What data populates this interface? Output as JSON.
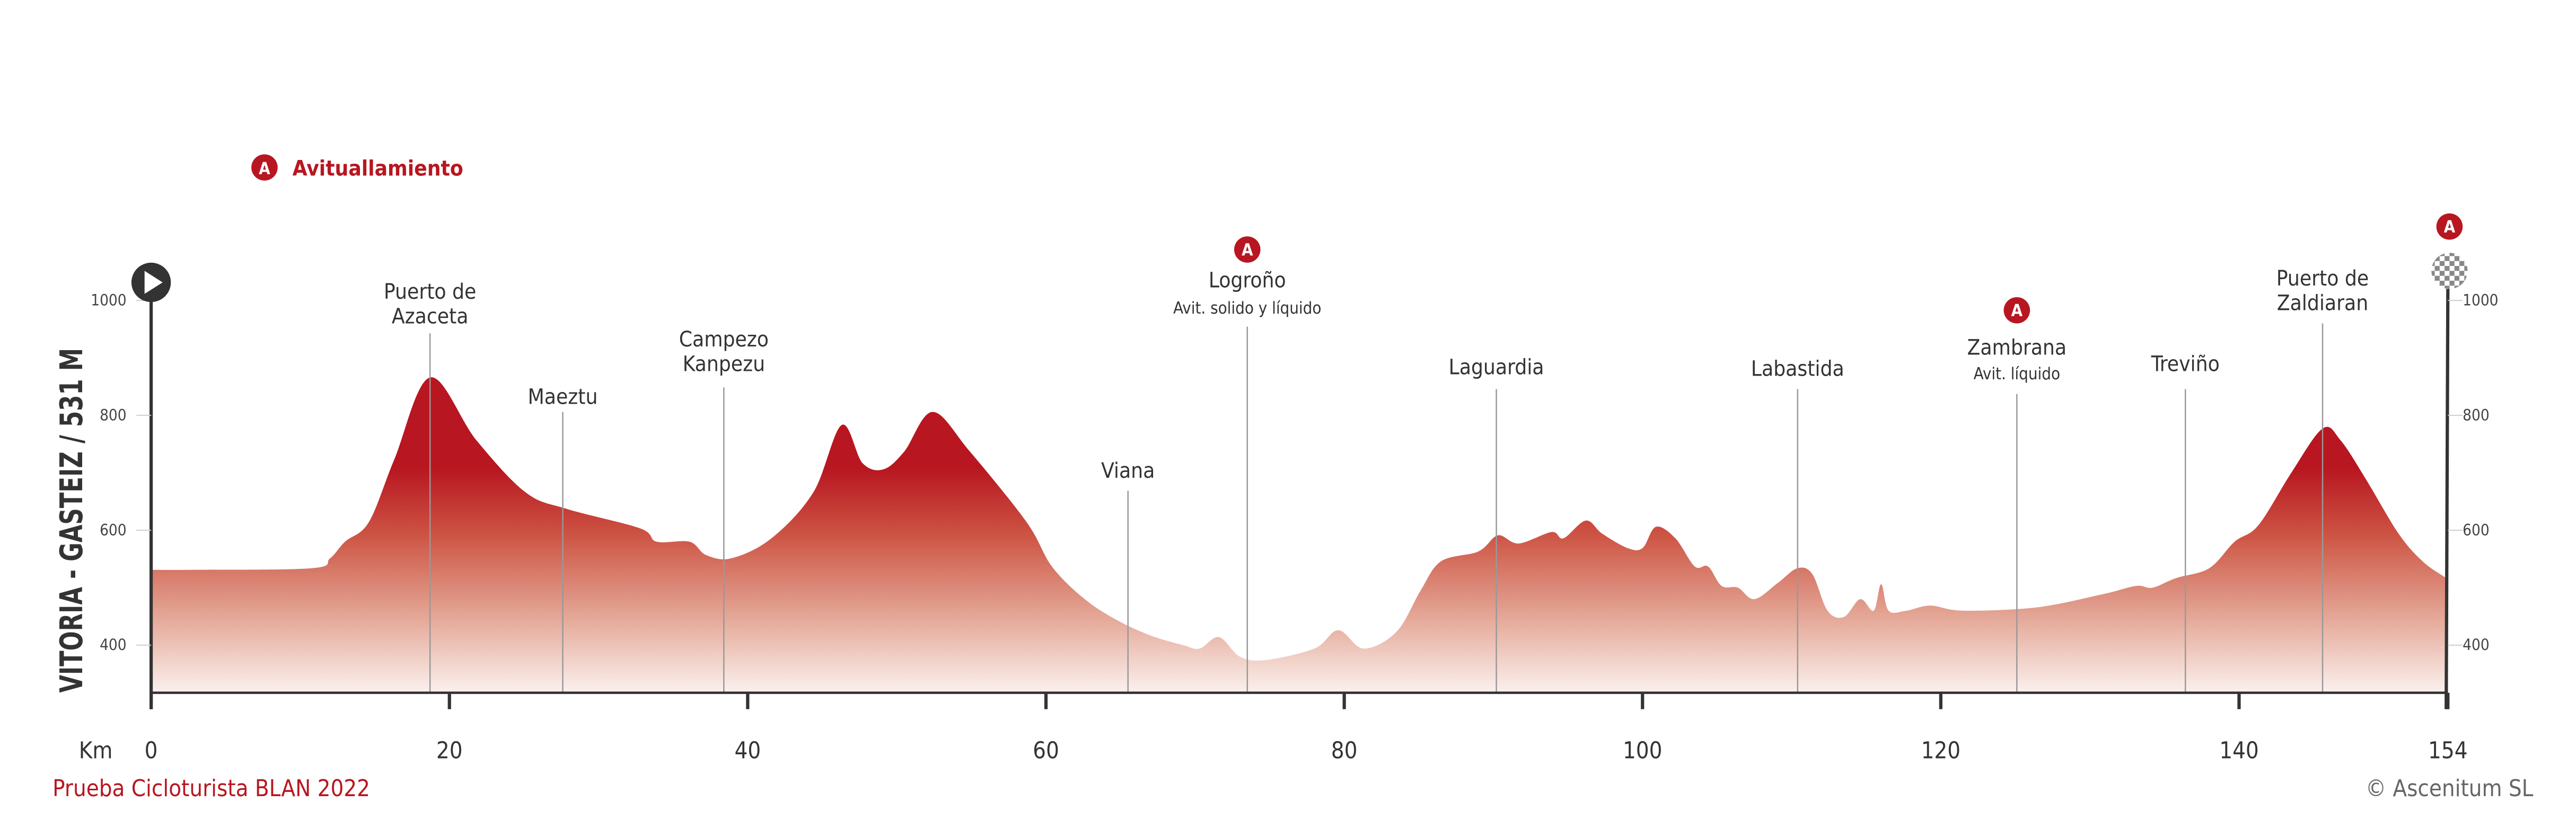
{
  "legend": {
    "marker_letter": "A",
    "label": "Avituallamiento"
  },
  "footer": {
    "event": "Prueba Cicloturista BLAN 2022",
    "copyright": "© Ascenitum SL"
  },
  "colors": {
    "accent": "#b81620",
    "axis": "#333333",
    "fill_top": "#b81620",
    "fill_bottom": "#fbf1ee"
  },
  "chart_data": {
    "type": "area",
    "title": "VITORIA - GASTEIZ / 531 M",
    "xlabel": "Km",
    "ylabel": "",
    "xlim": [
      0,
      154
    ],
    "ylim": [
      317,
      1000
    ],
    "x_ticks": [
      0,
      20,
      40,
      60,
      80,
      100,
      120,
      140,
      154
    ],
    "y_ticks": [
      400,
      600,
      800,
      1000
    ],
    "grid": false,
    "x": [
      0,
      3,
      10.8,
      12,
      13,
      14.6,
      16.3,
      18.7,
      21.8,
      25.1,
      27.9,
      32.8,
      33.9,
      36.1,
      37.2,
      38.9,
      41.6,
      44.4,
      46.3,
      47.7,
      49.1,
      50.5,
      52.4,
      54.9,
      58.7,
      60.4,
      62.6,
      64.8,
      67,
      69.2,
      70.3,
      71.6,
      73,
      74.7,
      78,
      79.6,
      81.3,
      83.5,
      85.1,
      86.5,
      89,
      90.3,
      91.7,
      93.9,
      94.7,
      96.2,
      97.3,
      99,
      100,
      100.9,
      102.2,
      103.5,
      104.4,
      105.3,
      106.4,
      107.5,
      109.1,
      110.4,
      111.4,
      112.4,
      113.5,
      114.6,
      115.5,
      116,
      116.5,
      117.7,
      119.3,
      121.5,
      126.5,
      130.9,
      133.1,
      134.2,
      135.8,
      138,
      139.7,
      141.3,
      143.5,
      145.6,
      146.8,
      148.5,
      150.7,
      152.3,
      153.7,
      154
    ],
    "elevation": [
      531,
      531,
      534,
      551,
      580,
      614,
      723,
      866,
      757,
      666,
      637,
      603,
      580,
      580,
      557,
      551,
      586,
      666,
      783,
      717,
      706,
      737,
      806,
      737,
      614,
      537,
      480,
      443,
      417,
      400,
      394,
      414,
      380,
      374,
      394,
      426,
      394,
      423,
      494,
      546,
      563,
      591,
      577,
      597,
      586,
      617,
      594,
      569,
      569,
      606,
      586,
      537,
      537,
      503,
      500,
      480,
      509,
      534,
      523,
      460,
      449,
      480,
      460,
      506,
      460,
      460,
      469,
      460,
      466,
      489,
      503,
      500,
      517,
      534,
      580,
      609,
      700,
      777,
      757,
      689,
      594,
      546,
      520,
      515
    ],
    "landmarks": [
      {
        "km": 18.7,
        "name": [
          "Puerto de",
          "Azaceta"
        ],
        "note": "",
        "feed": false
      },
      {
        "km": 27.6,
        "name": [
          "Maeztu"
        ],
        "note": "",
        "feed": false
      },
      {
        "km": 38.4,
        "name": [
          "Campezo",
          "Kanpezu"
        ],
        "note": "",
        "feed": false
      },
      {
        "km": 65.5,
        "name": [
          "Viana"
        ],
        "note": "",
        "feed": false
      },
      {
        "km": 73.5,
        "name": [
          "Logroño"
        ],
        "note": "Avit. solido y líquido",
        "feed": true
      },
      {
        "km": 90.2,
        "name": [
          "Laguardia"
        ],
        "note": "",
        "feed": false
      },
      {
        "km": 110.4,
        "name": [
          "Labastida"
        ],
        "note": "",
        "feed": false
      },
      {
        "km": 125.1,
        "name": [
          "Zambrana"
        ],
        "note": "Avit. líquido",
        "feed": true
      },
      {
        "km": 136.4,
        "name": [
          "Treviño"
        ],
        "note": "",
        "feed": false
      },
      {
        "km": 145.6,
        "name": [
          "Puerto de",
          "Zaldiaran"
        ],
        "note": "",
        "feed": false
      }
    ],
    "start_icon": "play-icon",
    "finish_icon": "checkered-flag-icon",
    "finish_feed": true
  }
}
